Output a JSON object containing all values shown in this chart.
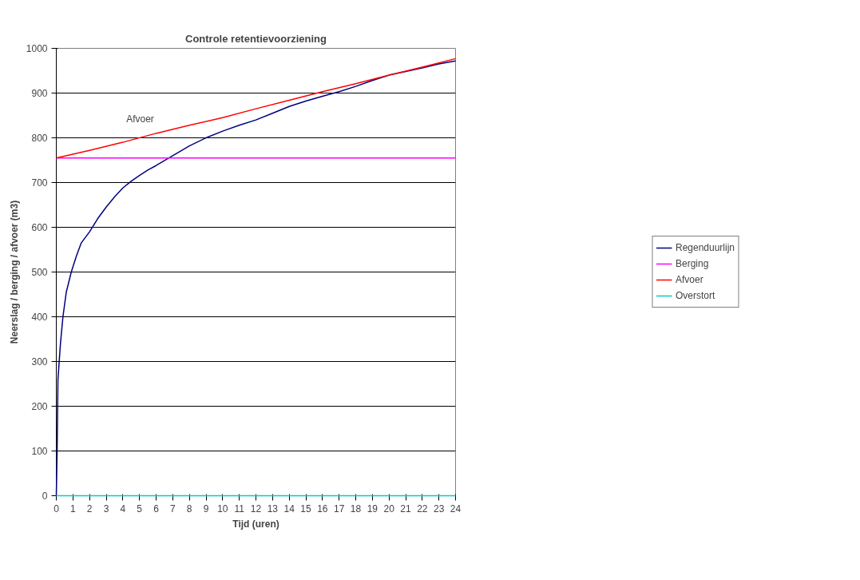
{
  "chart_data": {
    "type": "line",
    "title": "Controle retentievoorziening",
    "xlabel": "Tijd (uren)",
    "ylabel": "Neerslag / berging / afvoer (m3)",
    "xlim": [
      0,
      24
    ],
    "xticks": [
      0,
      1,
      2,
      3,
      4,
      5,
      6,
      7,
      8,
      9,
      10,
      11,
      12,
      13,
      14,
      15,
      16,
      17,
      18,
      19,
      20,
      21,
      22,
      23,
      24
    ],
    "ylim": [
      0,
      1000
    ],
    "yticks": [
      0,
      100,
      200,
      300,
      400,
      500,
      600,
      700,
      800,
      900,
      1000
    ],
    "grid": "y",
    "legend": "right",
    "marker": "none",
    "line_style": "solid",
    "annotations": [
      "Afvoer"
    ],
    "series": [
      {
        "name": "Regenduurlijn",
        "color": "#000080",
        "x": [
          0,
          0.05,
          0.1,
          0.25,
          0.4,
          0.6,
          0.9,
          1.2,
          1.5,
          2,
          2.5,
          3,
          3.5,
          4,
          4.5,
          5,
          5.5,
          6,
          7,
          8,
          9,
          10,
          11,
          12,
          13,
          14,
          15,
          16,
          17,
          18,
          19,
          20,
          21,
          22,
          23,
          24
        ],
        "values": [
          0,
          100,
          260,
          340,
          400,
          455,
          500,
          535,
          565,
          590,
          620,
          645,
          668,
          688,
          703,
          716,
          728,
          738,
          760,
          782,
          800,
          815,
          828,
          840,
          855,
          870,
          882,
          893,
          903,
          915,
          928,
          940,
          948,
          956,
          965,
          972
        ]
      },
      {
        "name": "Berging",
        "color": "#ff00ff",
        "x": [
          0,
          24
        ],
        "values": [
          755,
          755
        ]
      },
      {
        "name": "Afvoer",
        "color": "#ff0000",
        "x": [
          0,
          2,
          4,
          6,
          8,
          10,
          12,
          14,
          16,
          18,
          20,
          22,
          24
        ],
        "values": [
          755,
          772,
          790,
          810,
          828,
          845,
          865,
          884,
          903,
          921,
          940,
          958,
          977
        ]
      },
      {
        "name": "Overstort",
        "color": "#00cccc",
        "x": [
          0,
          24
        ],
        "values": [
          0,
          0
        ]
      }
    ]
  }
}
